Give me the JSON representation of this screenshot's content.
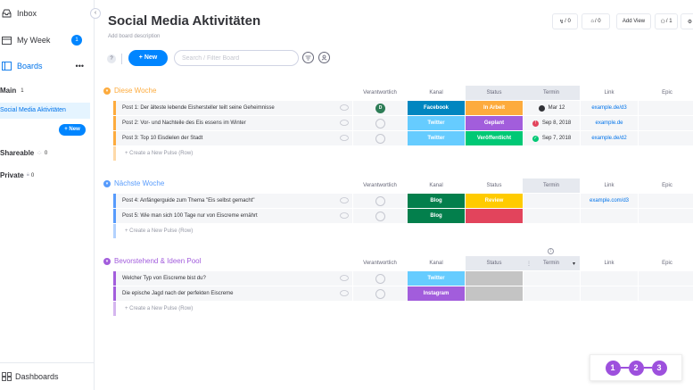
{
  "sidebar": {
    "inbox_label": "Inbox",
    "my_week_label": "My Week",
    "my_week_badge": "1",
    "boards_label": "Boards",
    "boards_more": "•••",
    "main_section": {
      "label": "Main",
      "count": "1"
    },
    "active_board": "Social Media Aktivitäten",
    "new_button": "+ New",
    "shareable_section": {
      "label": "Shareable",
      "count": "0"
    },
    "private_section": {
      "label": "Private",
      "count": "0"
    },
    "dashboards_label": "Dashboards"
  },
  "header": {
    "title": "Social Media Aktivitäten",
    "description": "Add board description",
    "activity_btn": "/ 0",
    "updates_btn": "/ 0",
    "add_view_btn": "Add View",
    "members_btn": "/ 1"
  },
  "toolbar": {
    "help": "?",
    "new_label": "+ New",
    "search_placeholder": "Search / Filter Board"
  },
  "columns": {
    "owner": "Verantwortlich",
    "channel": "Kanal",
    "status": "Status",
    "date": "Termin",
    "link": "Link",
    "epic": "Epic"
  },
  "colors": {
    "group1": "#fdab3d",
    "group2": "#579bfc",
    "group3": "#a25ddc",
    "facebook": "#0086c0",
    "twitter": "#66ccff",
    "blog": "#037f4c",
    "instagram": "#a25ddc",
    "in_arbeit": "#fdab3d",
    "geplant": "#a25ddc",
    "veroeffentlicht": "#00c875",
    "review": "#ffcb00",
    "red": "#e2445c",
    "empty_status": "#c4c4c4"
  },
  "groups": [
    {
      "title": "Diese Woche",
      "add_row": "+ Create a New Pulse (Row)",
      "rows": [
        {
          "name": "Post 1: Der älteste lebende Eisher­steller teilt seine Geheimnisse",
          "owner": "D",
          "channel": "Facebook",
          "status": "In Arbeit",
          "date": "Mar 12",
          "link": "example.de/d3"
        },
        {
          "name": "Post 2: Vor- und Nachteile des Eis essens im Winter",
          "owner": "",
          "channel": "Twitter",
          "status": "Geplant",
          "date": "Sep 8, 2018",
          "link": "example.de"
        },
        {
          "name": "Post 3: Top 10 Eisdielen der Stadt",
          "owner": "",
          "channel": "Twitter",
          "status": "Veröffentlicht",
          "date": "Sep 7, 2018",
          "link": "example.de/d2"
        }
      ]
    },
    {
      "title": "Nächste Woche",
      "add_row": "+ Create a New Pulse (Row)",
      "rows": [
        {
          "name": "Post 4: Anfängerguide zum Thema \"Eis selbst gemacht\"",
          "owner": "",
          "channel": "Blog",
          "status": "Review",
          "date": "",
          "link": "example.com/d3"
        },
        {
          "name": "Post 5: Wie man sich 100 Tage nur von Eiscreme ernährt",
          "owner": "",
          "channel": "Blog",
          "status": "",
          "date": "",
          "link": ""
        }
      ]
    },
    {
      "title": "Bevorstehend & Ideen Pool",
      "add_row": "+ Create a New Pulse (Row)",
      "rows": [
        {
          "name": "Welcher Typ von Eiscreme bist du?",
          "owner": "",
          "channel": "Twitter",
          "status": "",
          "date": "",
          "link": ""
        },
        {
          "name": "Die epische Jagd nach der perfekten Eiscreme",
          "owner": "",
          "channel": "Instagram",
          "status": "",
          "date": "",
          "link": ""
        }
      ]
    }
  ],
  "steps": [
    "1",
    "2",
    "3"
  ]
}
